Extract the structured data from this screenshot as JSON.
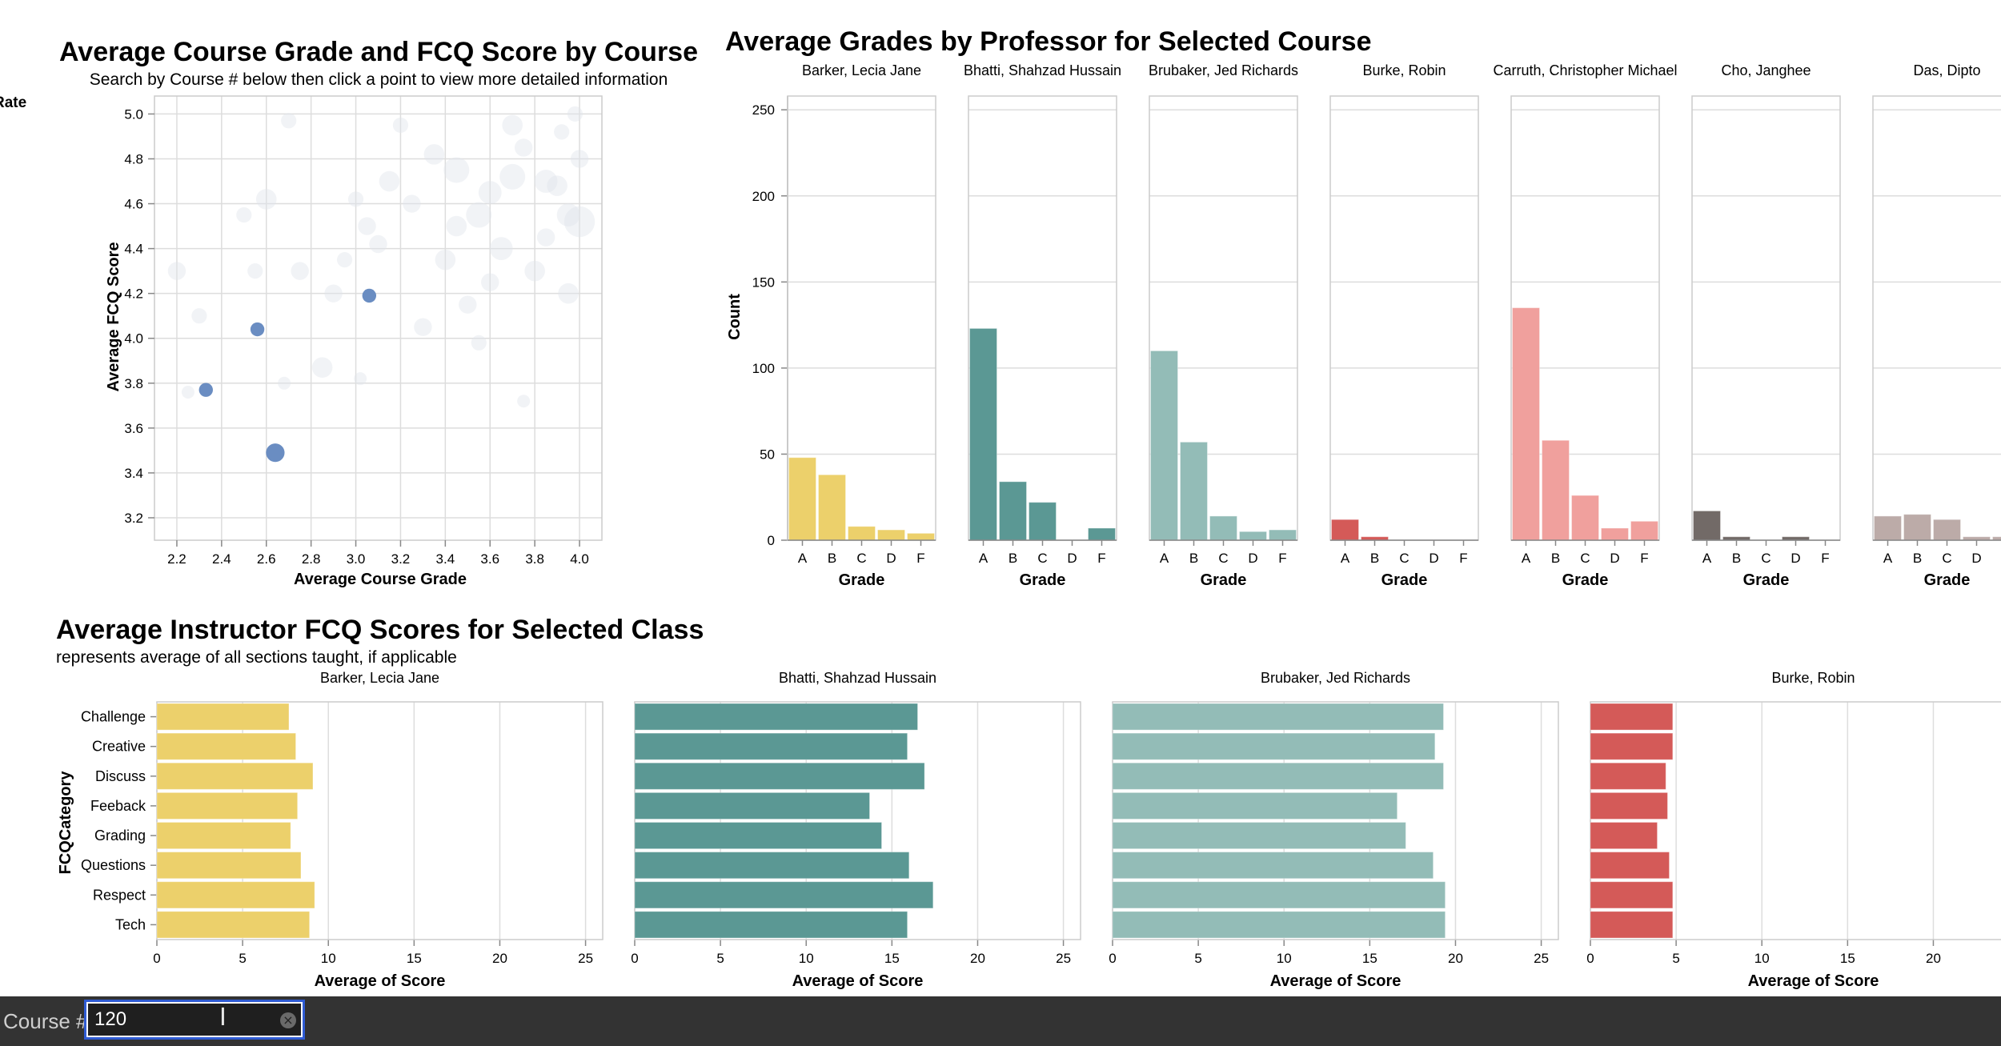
{
  "colors": {
    "professors": [
      "#ecd06b",
      "#5b9894",
      "#93bcb7",
      "#d45a58",
      "#f0a09d",
      "#726a67",
      "#bcaba8"
    ],
    "selected_point": "#6a8dc2",
    "faded_point": "#dfe5ec",
    "grid": "#dddddd"
  },
  "scatter": {
    "title": "Average Course Grade and FCQ Score by Course",
    "subtitle": "Search by Course # below then click a point to view more detailed information",
    "legend_fragment": "Rate",
    "xlabel": "Average Course Grade",
    "ylabel": "Average FCQ Score"
  },
  "grades": {
    "title": "Average Grades by Professor for Selected Course",
    "ylabel": "Count",
    "xlabel": "Grade"
  },
  "fcq": {
    "title": "Average Instructor FCQ Scores for Selected Class",
    "subtitle": "represents average of all sections taught, if applicable",
    "ylabel": "FCQCategory",
    "xlabel": "Average of Score"
  },
  "controls": {
    "course_label": "Course #",
    "course_value": "120",
    "clear_icon": "circle-x-icon",
    "cursor_icon": "text-cursor-icon"
  },
  "chart_data": [
    {
      "type": "scatter",
      "title": "Average Course Grade and FCQ Score by Course",
      "xlabel": "Average Course Grade",
      "ylabel": "Average FCQ Score",
      "xlim": [
        2.1,
        4.1
      ],
      "ylim": [
        3.1,
        5.08
      ],
      "x_ticks": [
        2.2,
        2.4,
        2.6,
        2.8,
        3.0,
        3.2,
        3.4,
        3.6,
        3.8,
        4.0
      ],
      "y_ticks": [
        3.2,
        3.4,
        3.6,
        3.8,
        4.0,
        4.2,
        4.4,
        4.6,
        4.8,
        5.0
      ],
      "grid": true,
      "selected_points": [
        {
          "x": 2.33,
          "y": 3.77,
          "size": 6
        },
        {
          "x": 2.56,
          "y": 4.04,
          "size": 6
        },
        {
          "x": 3.06,
          "y": 4.19,
          "size": 6
        },
        {
          "x": 2.64,
          "y": 3.49,
          "size": 8
        }
      ],
      "background_points": [
        {
          "x": 3.45,
          "y": 4.75,
          "size": 10
        },
        {
          "x": 3.6,
          "y": 4.65,
          "size": 9
        },
        {
          "x": 3.7,
          "y": 4.72,
          "size": 10
        },
        {
          "x": 3.85,
          "y": 4.7,
          "size": 9
        },
        {
          "x": 3.95,
          "y": 4.55,
          "size": 9
        },
        {
          "x": 4.0,
          "y": 4.52,
          "size": 12
        },
        {
          "x": 3.9,
          "y": 4.68,
          "size": 8
        },
        {
          "x": 3.75,
          "y": 4.85,
          "size": 7
        },
        {
          "x": 3.55,
          "y": 4.55,
          "size": 10
        },
        {
          "x": 3.35,
          "y": 4.82,
          "size": 8
        },
        {
          "x": 3.25,
          "y": 4.6,
          "size": 7
        },
        {
          "x": 3.15,
          "y": 4.7,
          "size": 8
        },
        {
          "x": 3.4,
          "y": 4.35,
          "size": 8
        },
        {
          "x": 3.65,
          "y": 4.4,
          "size": 9
        },
        {
          "x": 3.8,
          "y": 4.3,
          "size": 8
        },
        {
          "x": 3.1,
          "y": 4.42,
          "size": 7
        },
        {
          "x": 3.5,
          "y": 4.15,
          "size": 7
        },
        {
          "x": 3.95,
          "y": 4.2,
          "size": 8
        },
        {
          "x": 2.6,
          "y": 4.62,
          "size": 8
        },
        {
          "x": 2.75,
          "y": 4.3,
          "size": 7
        },
        {
          "x": 2.95,
          "y": 4.35,
          "size": 6
        },
        {
          "x": 2.2,
          "y": 4.3,
          "size": 7
        },
        {
          "x": 2.85,
          "y": 3.87,
          "size": 8
        },
        {
          "x": 2.9,
          "y": 4.2,
          "size": 7
        },
        {
          "x": 3.3,
          "y": 4.05,
          "size": 7
        },
        {
          "x": 3.55,
          "y": 3.98,
          "size": 6
        },
        {
          "x": 3.0,
          "y": 4.62,
          "size": 6
        },
        {
          "x": 3.7,
          "y": 4.95,
          "size": 8
        },
        {
          "x": 3.98,
          "y": 5.0,
          "size": 6
        },
        {
          "x": 3.2,
          "y": 4.95,
          "size": 6
        },
        {
          "x": 2.5,
          "y": 4.55,
          "size": 6
        },
        {
          "x": 3.85,
          "y": 4.45,
          "size": 7
        },
        {
          "x": 3.6,
          "y": 4.25,
          "size": 7
        },
        {
          "x": 2.7,
          "y": 4.97,
          "size": 6
        },
        {
          "x": 3.05,
          "y": 4.5,
          "size": 7
        },
        {
          "x": 3.75,
          "y": 3.72,
          "size": 5
        },
        {
          "x": 2.3,
          "y": 4.1,
          "size": 6
        },
        {
          "x": 3.45,
          "y": 4.5,
          "size": 8
        },
        {
          "x": 4.0,
          "y": 4.8,
          "size": 7
        },
        {
          "x": 2.55,
          "y": 4.3,
          "size": 6
        },
        {
          "x": 3.92,
          "y": 4.92,
          "size": 6
        },
        {
          "x": 2.25,
          "y": 3.76,
          "size": 5
        },
        {
          "x": 2.68,
          "y": 3.8,
          "size": 5
        },
        {
          "x": 3.02,
          "y": 3.82,
          "size": 5
        }
      ]
    },
    {
      "type": "bar",
      "title": "Average Grades by Professor for Selected Course",
      "categories": [
        "A",
        "B",
        "C",
        "D",
        "F"
      ],
      "xlabel": "Grade",
      "ylabel": "Count",
      "ylim": [
        0,
        258
      ],
      "y_ticks": [
        0,
        50,
        100,
        150,
        200,
        250
      ],
      "grid": true,
      "series": [
        {
          "name": "Barker, Lecia Jane",
          "values": [
            48,
            38,
            8,
            6,
            4
          ]
        },
        {
          "name": "Bhatti, Shahzad Hussain",
          "values": [
            123,
            34,
            22,
            0,
            7
          ]
        },
        {
          "name": "Brubaker, Jed Richards",
          "values": [
            110,
            57,
            14,
            5,
            6
          ]
        },
        {
          "name": "Burke, Robin",
          "values": [
            12,
            2,
            0,
            0,
            0
          ]
        },
        {
          "name": "Carruth, Christopher Michael",
          "values": [
            135,
            58,
            26,
            7,
            11
          ]
        },
        {
          "name": "Cho, Janghee",
          "values": [
            17,
            2,
            0,
            2,
            0
          ]
        },
        {
          "name": "Das, Dipto",
          "values": [
            14,
            15,
            12,
            2,
            2
          ]
        }
      ]
    },
    {
      "type": "bar",
      "orientation": "horizontal",
      "title": "Average Instructor FCQ Scores for Selected Class",
      "categories": [
        "Challenge",
        "Creative",
        "Discuss",
        "Feeback",
        "Grading",
        "Questions",
        "Respect",
        "Tech"
      ],
      "xlabel": "Average of Score",
      "ylabel": "FCQCategory",
      "xlim": [
        0,
        26
      ],
      "x_ticks": [
        0,
        5,
        10,
        15,
        20,
        25
      ],
      "grid": true,
      "series": [
        {
          "name": "Barker, Lecia Jane",
          "values": [
            7.7,
            8.1,
            9.1,
            8.2,
            7.8,
            8.4,
            9.2,
            8.9
          ]
        },
        {
          "name": "Bhatti, Shahzad Hussain",
          "values": [
            16.5,
            15.9,
            16.9,
            13.7,
            14.4,
            16.0,
            17.4,
            15.9
          ]
        },
        {
          "name": "Brubaker, Jed Richards",
          "values": [
            19.3,
            18.8,
            19.3,
            16.6,
            17.1,
            18.7,
            19.4,
            19.4
          ]
        },
        {
          "name": "Burke, Robin",
          "values": [
            4.8,
            4.8,
            4.4,
            4.5,
            3.9,
            4.6,
            4.8,
            4.8
          ]
        }
      ]
    }
  ]
}
